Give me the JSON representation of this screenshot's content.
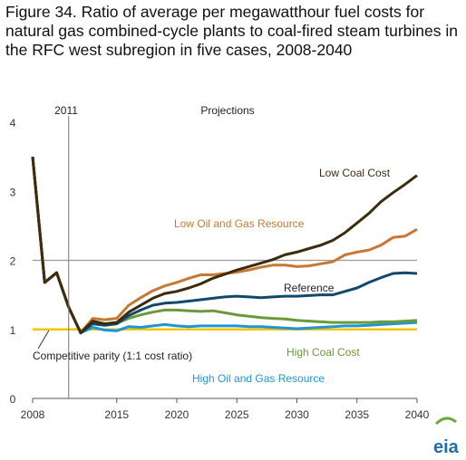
{
  "title": "Figure 34. Ratio of average per megawatthour fuel costs for natural gas combined-cycle plants to coal-fired steam turbines in the RFC west subregion in five cases, 2008-2040",
  "logo_text": "eia",
  "chart_data": {
    "type": "line",
    "title": "Figure 34. Ratio of average per megawatthour fuel costs for natural gas combined-cycle plants to coal-fired steam turbines in the RFC west subregion in five cases, 2008-2040",
    "xlabel": "",
    "ylabel": "",
    "xlim": [
      2008,
      2040
    ],
    "ylim": [
      0,
      4
    ],
    "x_ticks": [
      "2008",
      "2015",
      "2020",
      "2025",
      "2030",
      "2035",
      "2040"
    ],
    "y_ticks": [
      "0",
      "1",
      "2",
      "3",
      "4"
    ],
    "grid": false,
    "annotations": {
      "history_marker": "2011",
      "projections": "Projections",
      "parity_label": "Competitive parity (1:1 cost ratio)"
    },
    "reference_lines": [
      {
        "y": 2,
        "color": "#999999"
      },
      {
        "y": 1,
        "color": "#f5c400"
      }
    ],
    "x": [
      2008,
      2009,
      2010,
      2011,
      2012,
      2013,
      2014,
      2015,
      2016,
      2017,
      2018,
      2019,
      2020,
      2021,
      2022,
      2023,
      2024,
      2025,
      2026,
      2027,
      2028,
      2029,
      2030,
      2031,
      2032,
      2033,
      2034,
      2035,
      2036,
      2037,
      2038,
      2039,
      2040
    ],
    "series": [
      {
        "name": "Low Coal Cost",
        "color": "#3d2b10",
        "values": [
          3.5,
          1.68,
          1.82,
          1.32,
          0.95,
          1.12,
          1.08,
          1.1,
          1.25,
          1.35,
          1.45,
          1.52,
          1.55,
          1.6,
          1.66,
          1.74,
          1.8,
          1.86,
          1.91,
          1.96,
          2.01,
          2.08,
          2.12,
          2.17,
          2.22,
          2.29,
          2.4,
          2.54,
          2.68,
          2.85,
          2.98,
          3.1,
          3.23
        ]
      },
      {
        "name": "Low Oil and Gas Resource",
        "color": "#c87832",
        "values": [
          3.5,
          1.68,
          1.82,
          1.32,
          0.95,
          1.16,
          1.14,
          1.16,
          1.35,
          1.46,
          1.56,
          1.63,
          1.68,
          1.74,
          1.79,
          1.79,
          1.81,
          1.83,
          1.86,
          1.9,
          1.93,
          1.93,
          1.91,
          1.92,
          1.95,
          1.98,
          2.08,
          2.12,
          2.15,
          2.22,
          2.33,
          2.35,
          2.45
        ]
      },
      {
        "name": "Reference",
        "color": "#0f4a6e",
        "values": [
          3.5,
          1.68,
          1.82,
          1.32,
          0.95,
          1.08,
          1.06,
          1.08,
          1.2,
          1.28,
          1.35,
          1.38,
          1.39,
          1.41,
          1.43,
          1.45,
          1.47,
          1.48,
          1.47,
          1.46,
          1.47,
          1.48,
          1.48,
          1.49,
          1.5,
          1.5,
          1.55,
          1.6,
          1.68,
          1.75,
          1.81,
          1.82,
          1.81
        ]
      },
      {
        "name": "High Coal Cost",
        "color": "#6b9a3a",
        "values": [
          3.5,
          1.68,
          1.82,
          1.32,
          0.95,
          1.1,
          1.08,
          1.09,
          1.16,
          1.21,
          1.25,
          1.28,
          1.28,
          1.27,
          1.26,
          1.27,
          1.24,
          1.21,
          1.19,
          1.17,
          1.16,
          1.15,
          1.13,
          1.12,
          1.11,
          1.1,
          1.1,
          1.1,
          1.1,
          1.11,
          1.11,
          1.12,
          1.13
        ]
      },
      {
        "name": "High Oil and Gas Resource",
        "color": "#1e96d2",
        "values": [
          3.5,
          1.68,
          1.82,
          1.32,
          0.95,
          1.03,
          0.99,
          0.98,
          1.04,
          1.03,
          1.05,
          1.07,
          1.05,
          1.04,
          1.05,
          1.05,
          1.05,
          1.05,
          1.04,
          1.04,
          1.03,
          1.02,
          1.01,
          1.02,
          1.03,
          1.04,
          1.05,
          1.05,
          1.06,
          1.07,
          1.08,
          1.09,
          1.1
        ]
      }
    ]
  }
}
